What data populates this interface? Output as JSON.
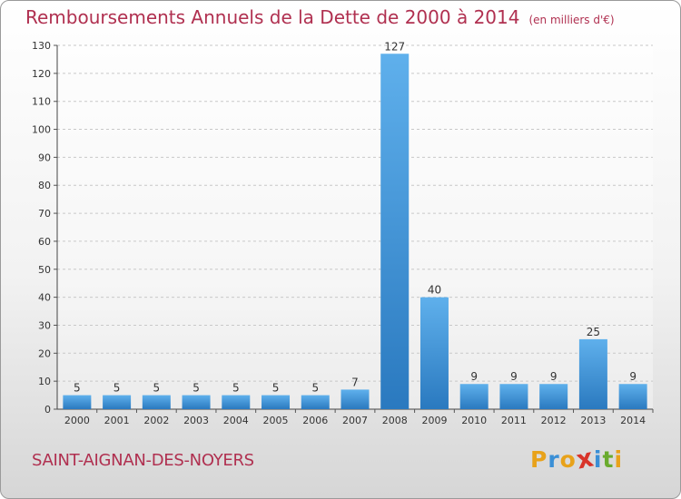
{
  "chart_data": {
    "type": "bar",
    "title": "Remboursements Annuels de la Dette de 2000 à 2014",
    "subtitle": "(en milliers d'€)",
    "categories": [
      "2000",
      "2001",
      "2002",
      "2003",
      "2004",
      "2005",
      "2006",
      "2007",
      "2008",
      "2009",
      "2010",
      "2011",
      "2012",
      "2013",
      "2014"
    ],
    "values": [
      5,
      5,
      5,
      5,
      5,
      5,
      5,
      7,
      127,
      40,
      9,
      9,
      9,
      25,
      9
    ],
    "ylim": [
      0,
      130
    ],
    "yticks": [
      0,
      10,
      20,
      30,
      40,
      50,
      60,
      70,
      80,
      90,
      100,
      110,
      120,
      130
    ],
    "grid": true,
    "bar_color": "#3a8fd6",
    "bar_color_light": "#5fb0ec",
    "bar_color_dark": "#2a79bf"
  },
  "footer": {
    "commune": "SAINT-AIGNAN-DES-NOYERS",
    "logo_letters": [
      "P",
      "r",
      "o",
      "x",
      "i",
      "t",
      "i"
    ],
    "logo_colors": [
      "#e8a21a",
      "#3a8fd6",
      "#e8a21a",
      "#d8342a",
      "#3a8fd6",
      "#6aab2e",
      "#e8a21a"
    ]
  },
  "colors": {
    "title": "#b03050"
  }
}
